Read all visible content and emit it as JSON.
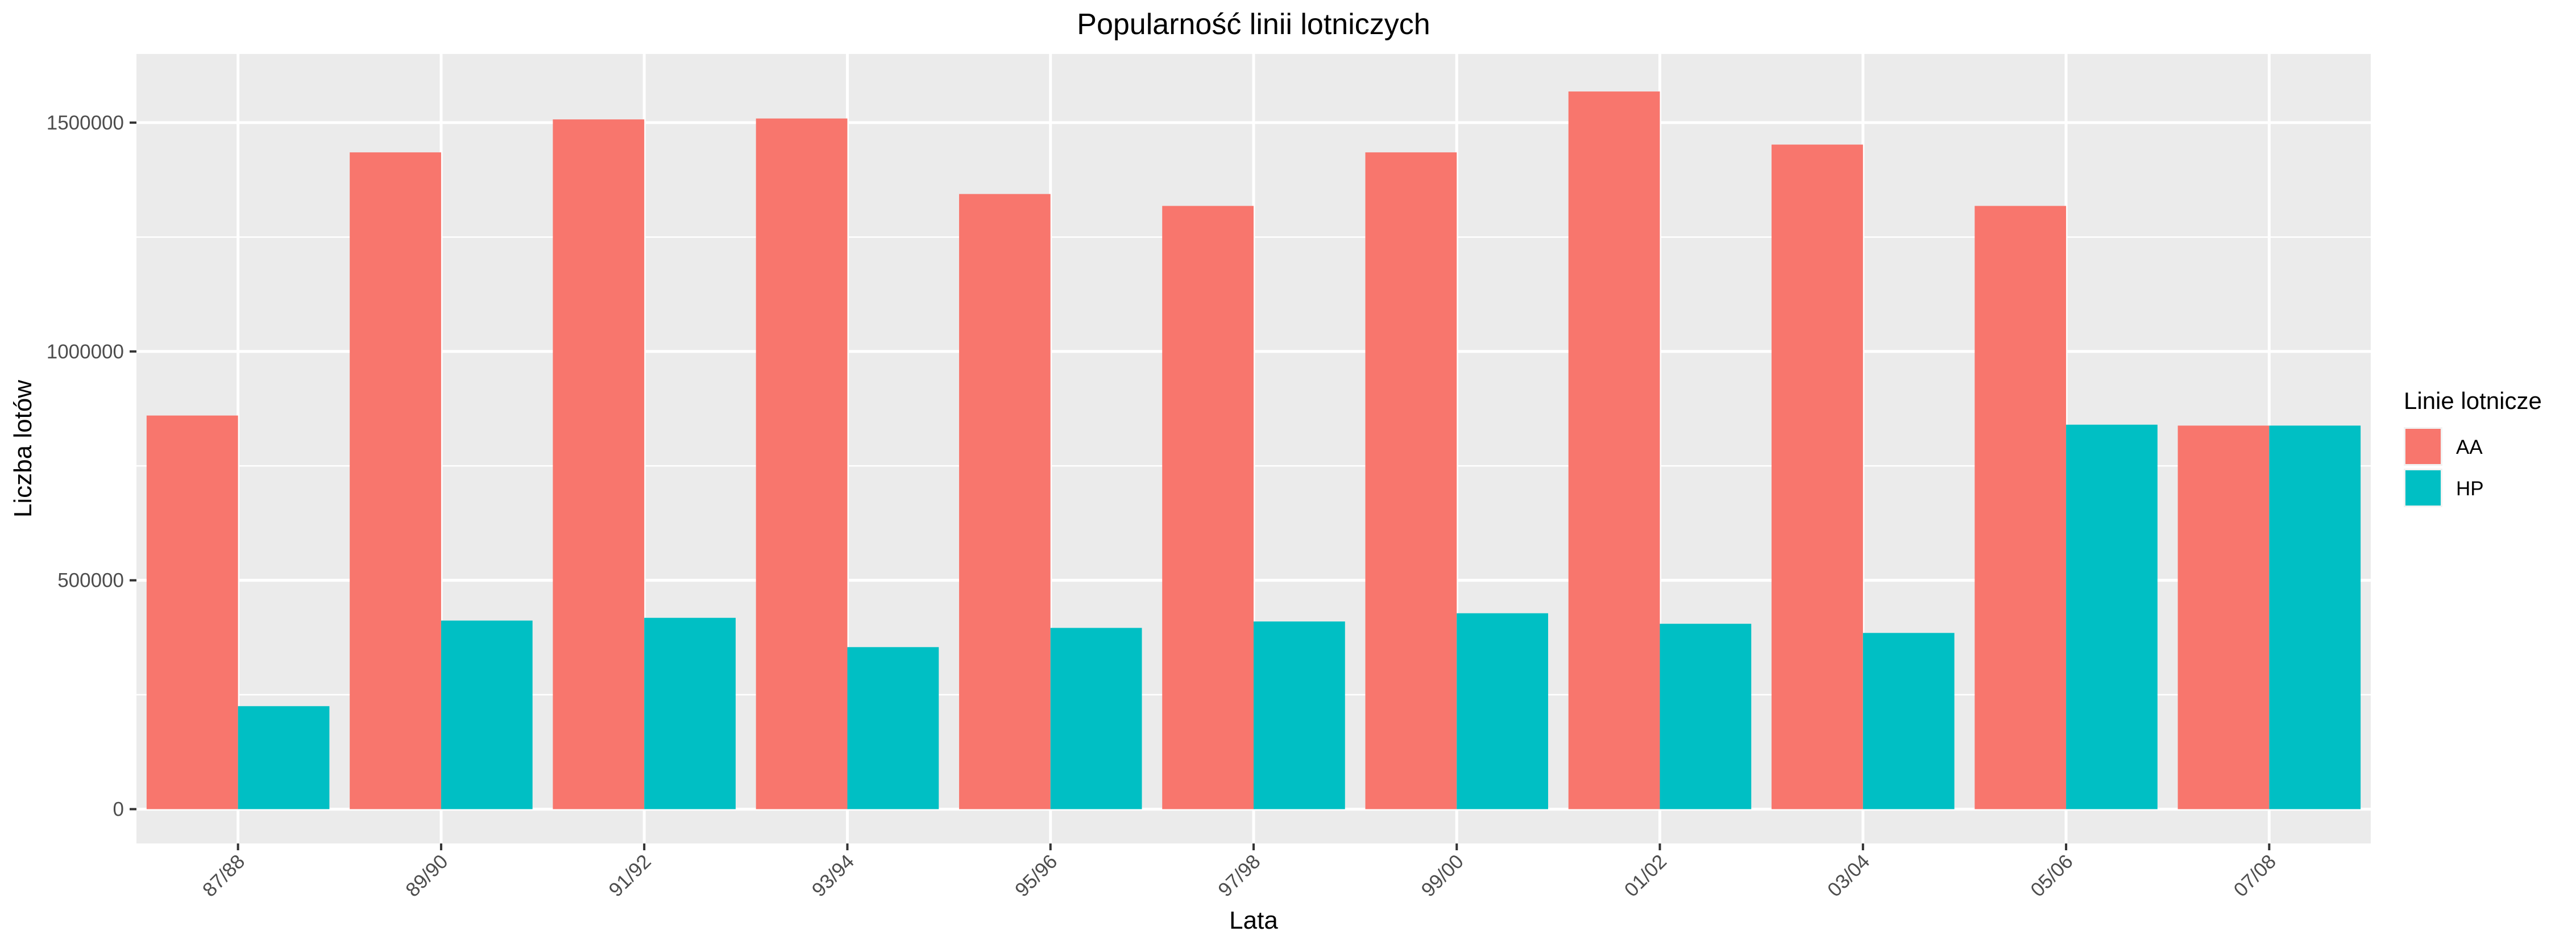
{
  "chart_data": {
    "type": "bar",
    "title": "Popularność linii lotniczych",
    "xlabel": "Lata",
    "ylabel": "Liczba lotów",
    "categories": [
      "87/88",
      "89/90",
      "91/92",
      "93/94",
      "95/96",
      "97/98",
      "99/00",
      "01/02",
      "03/04",
      "05/06",
      "07/08"
    ],
    "series": [
      {
        "name": "AA",
        "color": "#F8766D",
        "values": [
          860000,
          1435000,
          1507000,
          1509000,
          1344000,
          1318000,
          1435000,
          1568000,
          1452000,
          1318000,
          838000
        ]
      },
      {
        "name": "HP",
        "color": "#00BFC4",
        "values": [
          225000,
          412000,
          418000,
          354000,
          396000,
          410000,
          428000,
          405000,
          385000,
          840000,
          838000
        ]
      }
    ],
    "yticks": [
      0,
      500000,
      1000000,
      1500000
    ],
    "ytick_labels": [
      "0",
      "500000",
      "1000000",
      "1500000"
    ],
    "ylim": [
      -75000,
      1650000
    ],
    "legend": {
      "title": "Linie lotnicze",
      "position": "right"
    },
    "grid": true,
    "panel_background": "#EBEBEB"
  }
}
